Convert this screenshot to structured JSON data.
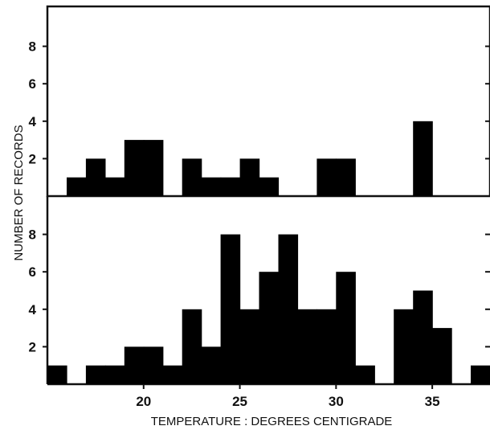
{
  "chart_data": [
    {
      "type": "bar",
      "panel": "top",
      "bin_width": 1,
      "x": [
        16.5,
        17.5,
        18.5,
        19.5,
        20.5,
        21.5,
        22.5,
        23.5,
        24.5,
        25.5,
        26.5,
        27.5,
        28.5,
        29.5,
        30.5,
        31.5,
        32.5,
        33.5,
        34.5,
        35.5
      ],
      "values": [
        1,
        2,
        1,
        3,
        3,
        0,
        2,
        1,
        1,
        2,
        1,
        0,
        0,
        2,
        2,
        0,
        0,
        0,
        4,
        0
      ],
      "ylim": [
        0,
        10
      ],
      "yticks": [
        2,
        4,
        6,
        8
      ]
    },
    {
      "type": "bar",
      "panel": "bottom",
      "bin_width": 1,
      "x": [
        15.5,
        16.5,
        17.5,
        18.5,
        19.5,
        20.5,
        21.5,
        22.5,
        23.5,
        24.5,
        25.5,
        26.5,
        27.5,
        28.5,
        29.5,
        30.5,
        31.5,
        32.5,
        33.5,
        34.5,
        35.5,
        36.5,
        37.5
      ],
      "values": [
        1,
        0,
        1,
        1,
        2,
        2,
        1,
        4,
        2,
        8,
        4,
        6,
        8,
        4,
        4,
        6,
        1,
        0,
        4,
        5,
        3,
        0,
        1
      ],
      "ylim": [
        0,
        10
      ],
      "yticks": [
        2,
        4,
        6,
        8
      ]
    }
  ],
  "axes": {
    "xlabel": "TEMPERATURE : DEGREES  CENTIGRADE",
    "ylabel": "NUMBER  OF  RECORDS",
    "xlim": [
      15,
      38
    ],
    "xticks": [
      20,
      25,
      30,
      35
    ],
    "xtick_labels": [
      "20",
      "25",
      "30",
      "35"
    ],
    "ytick_labels": [
      "2",
      "4",
      "6",
      "8"
    ]
  }
}
